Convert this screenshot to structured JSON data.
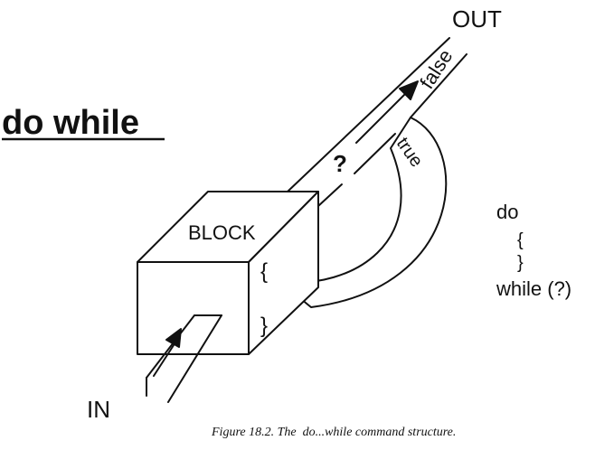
{
  "title": "do while",
  "labels": {
    "out": "OUT",
    "in": "IN",
    "false": "false",
    "true": "true",
    "question": "?",
    "block": "BLOCK",
    "brace_open": "{",
    "brace_close": "}"
  },
  "code": {
    "line1": "do",
    "line2": "{",
    "line3": "}",
    "line4": "while (?)"
  },
  "caption": "Figure 18.2. The  do...while command structure."
}
